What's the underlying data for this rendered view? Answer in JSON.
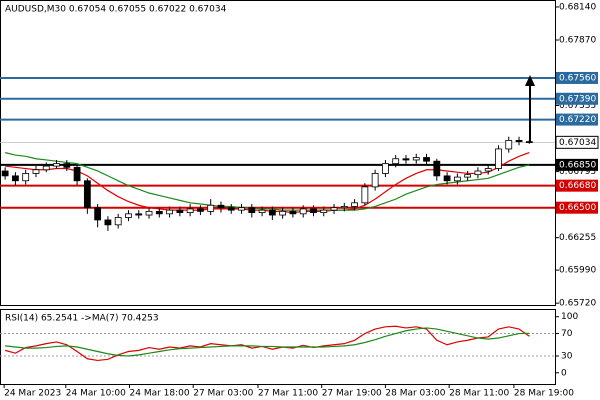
{
  "chart_data": [
    {
      "type": "candlestick",
      "title": "AUDUSD,M30  0.67054 0.67055 0.67022 0.67034",
      "open": [
        0.668,
        0.6676,
        0.6672,
        0.6678,
        0.6681,
        0.6684,
        0.6686,
        0.6683,
        0.6672,
        0.665,
        0.664,
        0.6636,
        0.6642,
        0.6645,
        0.6644,
        0.6647,
        0.6645,
        0.6648,
        0.6646,
        0.6649,
        0.6647,
        0.6652,
        0.665,
        0.6648,
        0.665,
        0.6646,
        0.6648,
        0.6644,
        0.6647,
        0.6645,
        0.6649,
        0.6646,
        0.6648,
        0.665,
        0.6651,
        0.6654,
        0.6667,
        0.6678,
        0.6686,
        0.669,
        0.6689,
        0.6691,
        0.6688,
        0.6676,
        0.6672,
        0.6675,
        0.6677,
        0.668,
        0.6682,
        0.6698,
        0.6705,
        0.6704
      ],
      "high": [
        0.6683,
        0.6679,
        0.6681,
        0.6684,
        0.6687,
        0.6689,
        0.6689,
        0.6685,
        0.6674,
        0.6653,
        0.6643,
        0.6645,
        0.6648,
        0.6648,
        0.665,
        0.665,
        0.6651,
        0.6651,
        0.6653,
        0.6652,
        0.6657,
        0.6655,
        0.6653,
        0.6653,
        0.6653,
        0.6651,
        0.6651,
        0.665,
        0.665,
        0.6652,
        0.6652,
        0.6651,
        0.6653,
        0.6654,
        0.6657,
        0.667,
        0.6681,
        0.6689,
        0.6693,
        0.6693,
        0.6694,
        0.6694,
        0.669,
        0.6679,
        0.6678,
        0.668,
        0.6683,
        0.6685,
        0.6701,
        0.6708,
        0.6708,
        0.67055
      ],
      "low": [
        0.6673,
        0.6668,
        0.6669,
        0.6675,
        0.6679,
        0.6682,
        0.668,
        0.6668,
        0.6645,
        0.6634,
        0.6631,
        0.6633,
        0.6639,
        0.6641,
        0.6641,
        0.6642,
        0.6642,
        0.6643,
        0.6643,
        0.6644,
        0.6644,
        0.6646,
        0.6645,
        0.6645,
        0.6642,
        0.6643,
        0.664,
        0.6641,
        0.6642,
        0.6642,
        0.6643,
        0.6643,
        0.6645,
        0.6647,
        0.6648,
        0.6652,
        0.6664,
        0.6675,
        0.6683,
        0.6686,
        0.6686,
        0.6685,
        0.6672,
        0.6669,
        0.6669,
        0.6672,
        0.6674,
        0.6677,
        0.668,
        0.6695,
        0.6701,
        0.67022
      ],
      "close": [
        0.6676,
        0.6672,
        0.6678,
        0.6681,
        0.6684,
        0.6686,
        0.6683,
        0.6672,
        0.665,
        0.664,
        0.6636,
        0.6642,
        0.6645,
        0.6644,
        0.6647,
        0.6645,
        0.6648,
        0.6646,
        0.6649,
        0.6647,
        0.6652,
        0.665,
        0.6648,
        0.665,
        0.6646,
        0.6648,
        0.6644,
        0.6647,
        0.6645,
        0.6649,
        0.6646,
        0.6648,
        0.665,
        0.6651,
        0.6654,
        0.6667,
        0.6678,
        0.6686,
        0.669,
        0.6689,
        0.6691,
        0.6688,
        0.6676,
        0.6672,
        0.6675,
        0.6677,
        0.668,
        0.6682,
        0.6698,
        0.6705,
        0.6704,
        0.67034
      ],
      "up_color": "#ffffff",
      "down_color": "#000000",
      "series": [
        {
          "color": "#e00000",
          "values": [
            0.6684,
            0.6683,
            0.6682,
            0.6681,
            0.6681,
            0.6682,
            0.6682,
            0.668,
            0.6676,
            0.667,
            0.6664,
            0.6659,
            0.6655,
            0.6652,
            0.665,
            0.6649,
            0.6648,
            0.6648,
            0.6648,
            0.6648,
            0.6649,
            0.6649,
            0.6649,
            0.6649,
            0.6648,
            0.6648,
            0.6647,
            0.6647,
            0.6646,
            0.6647,
            0.6647,
            0.6647,
            0.6648,
            0.6648,
            0.6649,
            0.6652,
            0.6657,
            0.6663,
            0.6669,
            0.6674,
            0.6678,
            0.6681,
            0.6681,
            0.668,
            0.6679,
            0.6678,
            0.6678,
            0.6679,
            0.6683,
            0.6688,
            0.6692,
            0.6695
          ]
        },
        {
          "color": "#1a8a1a",
          "values": [
            0.6695,
            0.6693,
            0.6692,
            0.669,
            0.6689,
            0.6688,
            0.6687,
            0.6686,
            0.6683,
            0.668,
            0.6676,
            0.6672,
            0.6668,
            0.6665,
            0.6662,
            0.666,
            0.6658,
            0.6656,
            0.6654,
            0.6653,
            0.6652,
            0.6651,
            0.6651,
            0.665,
            0.665,
            0.6649,
            0.6649,
            0.6648,
            0.6648,
            0.6648,
            0.6648,
            0.6648,
            0.6648,
            0.6648,
            0.6648,
            0.6649,
            0.6651,
            0.6654,
            0.6657,
            0.6661,
            0.6664,
            0.6667,
            0.6669,
            0.667,
            0.6671,
            0.6672,
            0.6673,
            0.6674,
            0.6677,
            0.668,
            0.6683,
            0.6685
          ]
        }
      ],
      "ylim": [
        0.65705,
        0.68197
      ],
      "yticks": [
        {
          "value": 0.6814,
          "label": "0.68140"
        },
        {
          "value": 0.6787,
          "label": "0.67870"
        },
        {
          "value": 0.67335,
          "label": "0.67335"
        },
        {
          "value": 0.66795,
          "label": "0.66795"
        },
        {
          "value": 0.66255,
          "label": "0.66255"
        },
        {
          "value": 0.6599,
          "label": "0.65990"
        },
        {
          "value": 0.6572,
          "label": "0.65720"
        }
      ],
      "levels": [
        {
          "value": 0.6756,
          "label": "0.67560",
          "color": "#2b6a9e"
        },
        {
          "value": 0.6739,
          "label": "0.67390",
          "color": "#2b6a9e"
        },
        {
          "value": 0.6722,
          "label": "0.67220",
          "color": "#2b6a9e"
        },
        {
          "value": 0.6685,
          "label": "0.66850",
          "color": "#000000"
        },
        {
          "value": 0.6668,
          "label": "0.66680",
          "color": "#d40000"
        },
        {
          "value": 0.665,
          "label": "0.66500",
          "color": "#d40000"
        }
      ],
      "current_price": {
        "value": 0.67034,
        "label": "0.67034"
      },
      "xlim": [
        0,
        54
      ],
      "xticks": [
        {
          "value": 0.4,
          "label": "24 Mar 2023"
        },
        {
          "value": 6.4,
          "label": "24 Mar 10:00"
        },
        {
          "value": 12.6,
          "label": "24 Mar 18:00"
        },
        {
          "value": 18.8,
          "label": "27 Mar 03:00"
        },
        {
          "value": 25.1,
          "label": "27 Mar 11:00"
        },
        {
          "value": 31.3,
          "label": "27 Mar 19:00"
        },
        {
          "value": 37.5,
          "label": "28 Mar 03:00"
        },
        {
          "value": 43.7,
          "label": "28 Mar 11:00"
        },
        {
          "value": 50.0,
          "label": "28 Mar 19:00"
        }
      ]
    },
    {
      "type": "line",
      "title": "RSI(14) 65.2541  ->MA(7) 70.4253",
      "series": [
        {
          "color": "#e00000",
          "values": [
            40,
            35,
            45,
            48,
            52,
            55,
            50,
            38,
            25,
            22,
            24,
            32,
            38,
            40,
            45,
            42,
            46,
            44,
            48,
            46,
            52,
            50,
            48,
            50,
            44,
            47,
            42,
            46,
            44,
            49,
            45,
            48,
            50,
            52,
            58,
            70,
            78,
            82,
            83,
            80,
            82,
            78,
            58,
            50,
            55,
            58,
            62,
            64,
            78,
            82,
            78,
            65.2541
          ]
        },
        {
          "color": "#1a8a1a",
          "values": [
            48,
            46,
            44,
            44,
            45,
            47,
            48,
            46,
            42,
            38,
            34,
            31,
            30,
            32,
            35,
            38,
            41,
            43,
            44,
            45,
            46,
            47,
            48,
            48,
            48,
            47,
            47,
            46,
            46,
            46,
            46,
            46,
            47,
            48,
            50,
            54,
            59,
            65,
            70,
            75,
            78,
            80,
            78,
            74,
            70,
            66,
            62,
            60,
            62,
            66,
            70,
            70.4253
          ]
        }
      ],
      "ylim": [
        -20,
        112
      ],
      "yticks": [
        0,
        30,
        70,
        100
      ]
    }
  ]
}
